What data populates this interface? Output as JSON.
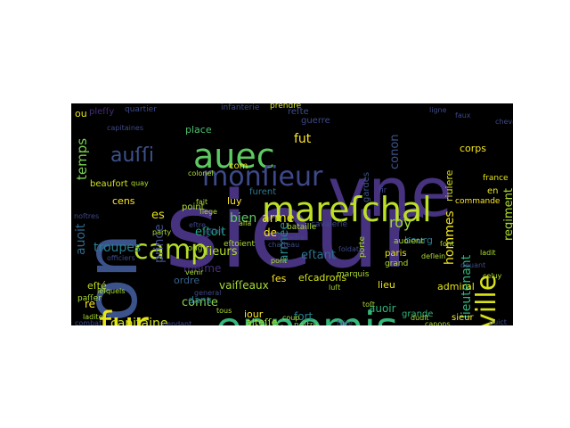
{
  "words": [
    {
      "text": "sieur",
      "color": "#46327e"
    },
    {
      "text": "vne",
      "color": "#46327e"
    },
    {
      "text": "son",
      "color": "#3b528b"
    },
    {
      "text": "ennemis",
      "color": "#35b779"
    },
    {
      "text": "mareſchal",
      "color": "#bddf26"
    },
    {
      "text": "auec",
      "color": "#5ec962"
    },
    {
      "text": "monſieur",
      "color": "#3e4989"
    },
    {
      "text": "fur",
      "color": "#e9e51a"
    },
    {
      "text": "ville",
      "color": "#d8e219"
    },
    {
      "text": "camp",
      "color": "#b5de2b"
    },
    {
      "text": "capitaine",
      "color": "#d0e11c"
    },
    {
      "text": "lieutenant",
      "color": "#2fb47c"
    },
    {
      "text": "hommes",
      "color": "#f1e51d"
    },
    {
      "text": "comte",
      "color": "#86d549"
    },
    {
      "text": "prince",
      "color": "#3e4c8a"
    },
    {
      "text": "auoit",
      "color": "#31688e"
    },
    {
      "text": "troupes",
      "color": "#277f8e"
    },
    {
      "text": "eſtoit",
      "color": "#21a685"
    },
    {
      "text": "eſtant",
      "color": "#2c728e"
    },
    {
      "text": "ſieurs",
      "color": "#b5de2b"
    },
    {
      "text": "roy",
      "color": "#a0da39"
    },
    {
      "text": "arme",
      "color": "#e5e419"
    },
    {
      "text": "armée",
      "color": "#25858e"
    },
    {
      "text": "eſcadrons",
      "color": "#d2e21b"
    },
    {
      "text": "vaiſſeaux",
      "color": "#a8db34"
    },
    {
      "text": "fut",
      "color": "#fde725"
    },
    {
      "text": "temps",
      "color": "#7ad151"
    },
    {
      "text": "auſſi",
      "color": "#3b528b"
    },
    {
      "text": "regiment",
      "color": "#addc30"
    },
    {
      "text": "riuiere",
      "color": "#d8e219"
    },
    {
      "text": "bourg",
      "color": "#2a788e"
    },
    {
      "text": "gardes",
      "color": "#3b528b"
    },
    {
      "text": "corps",
      "color": "#f4e61e"
    },
    {
      "text": "admiral",
      "color": "#e5e419"
    },
    {
      "text": "auoir",
      "color": "#2fb47c"
    },
    {
      "text": "grande",
      "color": "#2fb47c"
    },
    {
      "text": "sieur",
      "color": "#fde725"
    },
    {
      "text": "lieu",
      "color": "#eae51a"
    },
    {
      "text": "alteſſe",
      "color": "#a5db36"
    },
    {
      "text": "iour",
      "color": "#fde725"
    },
    {
      "text": "fort",
      "color": "#277f8e"
    },
    {
      "text": "noſtre",
      "color": "#7ad151"
    },
    {
      "text": "bien",
      "color": "#5ec962"
    },
    {
      "text": "eſt",
      "color": "#46327e"
    },
    {
      "text": "ordre",
      "color": "#34618d"
    },
    {
      "text": "dans",
      "color": "#2a788e"
    },
    {
      "text": "point",
      "color": "#addc30"
    },
    {
      "text": "cens",
      "color": "#fde725"
    },
    {
      "text": "es",
      "color": "#e5e419"
    },
    {
      "text": "meſme",
      "color": "#472f7d"
    },
    {
      "text": "luy",
      "color": "#fde725"
    },
    {
      "text": "com",
      "color": "#f1e51d"
    },
    {
      "text": "beaufort",
      "color": "#d0e11c"
    },
    {
      "text": "eſté",
      "color": "#c2df23"
    },
    {
      "text": "re",
      "color": "#fde725"
    },
    {
      "text": "paſſer",
      "color": "#addc30"
    },
    {
      "text": "ou",
      "color": "#e5e419"
    },
    {
      "text": "pleſſy",
      "color": "#472d7b"
    },
    {
      "text": "quartier",
      "color": "#3e4989"
    },
    {
      "text": "place",
      "color": "#4ac16d"
    },
    {
      "text": "infanterie",
      "color": "#3e4989"
    },
    {
      "text": "prendre",
      "color": "#d8e219"
    },
    {
      "text": "reſte",
      "color": "#3e4c8a"
    },
    {
      "text": "guerre",
      "color": "#3e4989"
    },
    {
      "text": "ligne",
      "color": "#3e4989"
    },
    {
      "text": "faux",
      "color": "#3e4989"
    },
    {
      "text": "conon",
      "color": "#3b528b"
    },
    {
      "text": "fir",
      "color": "#3e4989"
    },
    {
      "text": "de",
      "color": "#fde725"
    },
    {
      "text": "paris",
      "color": "#e5e419"
    },
    {
      "text": "france",
      "color": "#e5e419"
    },
    {
      "text": "en",
      "color": "#e5e419"
    },
    {
      "text": "grand",
      "color": "#addc30"
    },
    {
      "text": "auoient",
      "color": "#addc30"
    },
    {
      "text": "porte",
      "color": "#addc30"
    },
    {
      "text": "marquis",
      "color": "#addc30"
    },
    {
      "text": "cavalerie",
      "color": "#3e4989"
    },
    {
      "text": "bataille",
      "color": "#addc30"
    },
    {
      "text": "commande",
      "color": "#fde725"
    },
    {
      "text": "furent",
      "color": "#2a788e"
    },
    {
      "text": "long",
      "color": "#addc30"
    },
    {
      "text": "eſtoient",
      "color": "#addc30"
    },
    {
      "text": "ſes",
      "color": "#fde725"
    },
    {
      "text": "dudit",
      "color": "#addc30"
    },
    {
      "text": "pieces",
      "color": "#addc30"
    },
    {
      "text": "coup",
      "color": "#addc30"
    },
    {
      "text": "eſtre",
      "color": "#3e4989"
    },
    {
      "text": "capitaines",
      "color": "#3e4989"
    },
    {
      "text": "noſtres",
      "color": "#3e4989"
    },
    {
      "text": "chevalier",
      "color": "#3e4989"
    },
    {
      "text": "celuy",
      "color": "#addc30"
    },
    {
      "text": "leſquels",
      "color": "#addc30"
    },
    {
      "text": "combat",
      "color": "#3e4989"
    },
    {
      "text": "ladite",
      "color": "#addc30"
    },
    {
      "text": "canons",
      "color": "#addc30"
    },
    {
      "text": "nuict",
      "color": "#3e4989"
    },
    {
      "text": "ſoldats",
      "color": "#3e4989"
    },
    {
      "text": "pont",
      "color": "#addc30"
    },
    {
      "text": "chaſteau",
      "color": "#3e4989"
    },
    {
      "text": "tous",
      "color": "#addc30"
    },
    {
      "text": "colonel",
      "color": "#addc30"
    },
    {
      "text": "quay",
      "color": "#addc30"
    },
    {
      "text": "party",
      "color": "#addc30"
    },
    {
      "text": "venir",
      "color": "#addc30"
    },
    {
      "text": "eſtoit",
      "color": "#3e4989"
    },
    {
      "text": "toſt",
      "color": "#addc30"
    },
    {
      "text": "deſlein",
      "color": "#addc30"
    },
    {
      "text": "pendant",
      "color": "#3e4989"
    },
    {
      "text": "faire",
      "color": "#3e4989"
    },
    {
      "text": "deuant",
      "color": "#3e4989"
    },
    {
      "text": "fait",
      "color": "#addc30"
    },
    {
      "text": "alla",
      "color": "#addc30"
    },
    {
      "text": "ſiege",
      "color": "#addc30"
    },
    {
      "text": "eſcadre",
      "color": "#3e4989"
    },
    {
      "text": "ladit",
      "color": "#addc30"
    },
    {
      "text": "officiers",
      "color": "#3e4989"
    },
    {
      "text": "general",
      "color": "#3e4989"
    },
    {
      "text": "auec",
      "color": "#addc30"
    },
    {
      "text": "ſont",
      "color": "#addc30"
    },
    {
      "text": "luſt",
      "color": "#addc30"
    }
  ]
}
